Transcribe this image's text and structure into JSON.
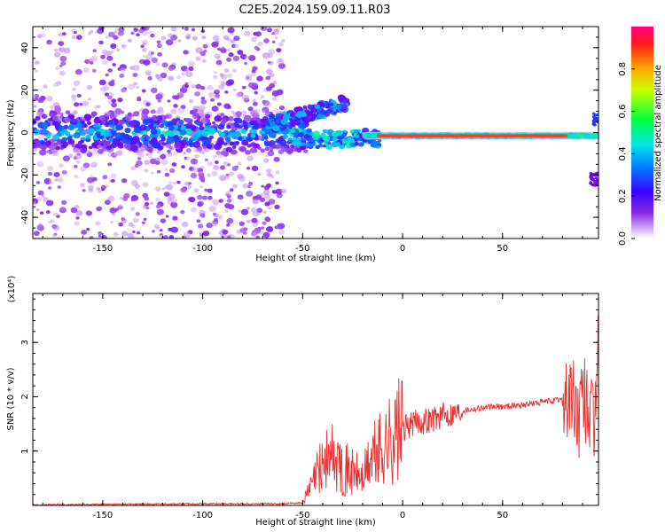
{
  "title": "C2E5.2024.159.09.11.R03",
  "colors": {
    "snr_line": "#e83030",
    "axis": "#000000",
    "spec_low": "#c8a8f0",
    "spec_mid": "#5a00f0",
    "spec_high": "#ff1a3c"
  },
  "chart_data": [
    {
      "type": "heatmap",
      "xlabel": "Height of straight line (km)",
      "ylabel": "Frequency (Hz)",
      "xlim": [
        -185,
        98
      ],
      "ylim": [
        -50,
        50
      ],
      "xticks": [
        -150,
        -100,
        -50,
        0,
        50
      ],
      "yticks": [
        -40,
        -20,
        0,
        20,
        40
      ],
      "colorbar": {
        "label": "Normalized spectral amplitude",
        "range": [
          0,
          1
        ],
        "ticks": [
          "0.0",
          "0.2",
          "0.4",
          "0.6",
          "0.8"
        ],
        "tick_values": [
          0,
          0.2,
          0.4,
          0.6,
          0.8
        ],
        "colormap": "rainbow (purple-blue-cyan-green-yellow-red)"
      },
      "features": [
        {
          "x_range": [
            -185,
            -48
          ],
          "freq_center": 0,
          "amplitude": "0.2-0.6",
          "note": "broad noisy band"
        },
        {
          "x_range": [
            -70,
            -30
          ],
          "freq_start": 3,
          "freq_end": 14,
          "amplitude": "0.3-0.5",
          "note": "rising branch"
        },
        {
          "x_range": [
            -15,
            82
          ],
          "freq_center": -1.5,
          "amplitude": "0.9-1.0",
          "note": "strong narrow line"
        },
        {
          "x_range": [
            94,
            98
          ],
          "freq_center": -22,
          "amplitude": "0.3",
          "note": "edge feature"
        }
      ]
    },
    {
      "type": "line",
      "xlabel": "Height of straight line (km)",
      "ylabel": "SNR (10 * v/v)",
      "y_scale_label": "(x10⁴)",
      "xlim": [
        -185,
        98
      ],
      "ylim": [
        0,
        3.9
      ],
      "xticks": [
        -150,
        -100,
        -50,
        0,
        50
      ],
      "yticks": [
        1,
        2,
        3
      ],
      "series": [
        {
          "x": [
            -185,
            -150,
            -100,
            -60,
            -50,
            -45,
            -40,
            -35,
            -30,
            -25,
            -20,
            -15,
            -10,
            -5,
            0,
            5,
            10,
            15,
            20,
            30,
            40,
            50,
            60,
            70,
            80,
            84,
            88,
            92,
            96,
            98
          ],
          "y": [
            0.01,
            0.02,
            0.03,
            0.03,
            0.05,
            0.4,
            0.8,
            0.9,
            0.7,
            0.6,
            0.5,
            0.9,
            1.05,
            1.25,
            1.4,
            1.5,
            1.55,
            1.6,
            1.65,
            1.75,
            1.8,
            1.82,
            1.85,
            1.9,
            1.95,
            2.0,
            1.6,
            2.0,
            1.2,
            3.8
          ]
        }
      ]
    }
  ]
}
